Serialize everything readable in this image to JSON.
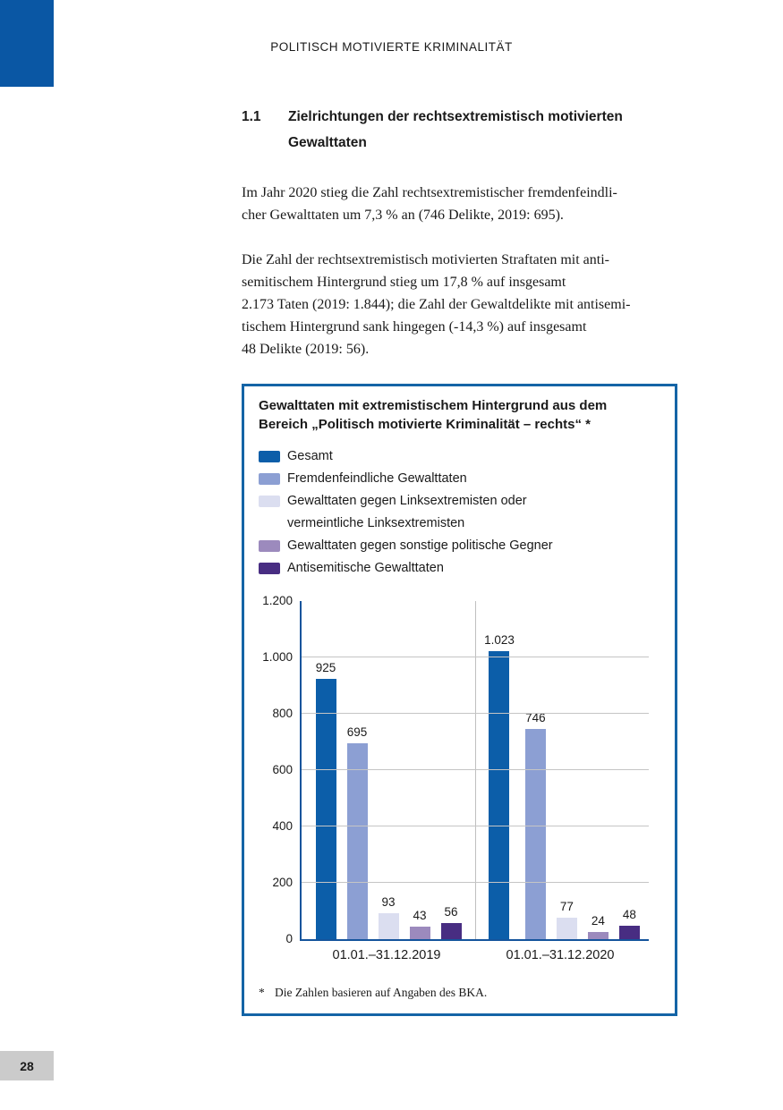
{
  "page": {
    "running_head": "POLITISCH MOTIVIERTE KRIMINALITÄT",
    "page_number": "28"
  },
  "section": {
    "number": "1.1",
    "title_lines": [
      "Zielrichtungen der rechtsextremistisch motivierten",
      "Gewalttaten"
    ]
  },
  "paragraphs": [
    "Im Jahr 2020 stieg die Zahl rechtsextremistischer fremdenfeindli-\ncher Gewalttaten um 7,3 % an (746 Delikte, 2019: 695).",
    "Die Zahl der rechtsextremistisch motivierten Straftaten mit anti-\nsemitischem  Hintergrund  stieg  um  17,8  %  auf  insgesamt\n2.173 Taten (2019: 1.844); die Zahl der Gewaltdelikte mit antisemi-\ntischem  Hintergrund  sank  hingegen  (-14,3  %)  auf  insgesamt\n48 Delikte (2019: 56)."
  ],
  "figure": {
    "title_lines": [
      "Gewalttaten mit extremistischem Hintergrund aus dem",
      "Bereich „Politisch motivierte Kriminalität – rechts“ *"
    ],
    "legend": [
      {
        "label": "Gesamt",
        "color": "#0c5ea9"
      },
      {
        "label": "Fremdenfeindliche Gewalttaten",
        "color": "#8c9fd3"
      },
      {
        "label": "Gewalttaten gegen Linksextremisten oder\nvermeintliche Linksextremisten",
        "color": "#dbdef0"
      },
      {
        "label": "Gewalttaten gegen sonstige politische Gegner",
        "color": "#9c8abd"
      },
      {
        "label": "Antisemitische Gewalttaten",
        "color": "#482d82"
      }
    ],
    "footnote_marker": "*",
    "footnote_text": "Die Zahlen basieren auf Angaben des BKA."
  },
  "chart_data": {
    "type": "bar",
    "categories": [
      "01.01.–31.12.2019",
      "01.01.–31.12.2020"
    ],
    "series": [
      {
        "name": "Gesamt",
        "color": "#0c5ea9",
        "values": [
          925,
          1023
        ],
        "labels": [
          "925",
          "1.023"
        ]
      },
      {
        "name": "Fremdenfeindliche Gewalttaten",
        "color": "#8c9fd3",
        "values": [
          695,
          746
        ],
        "labels": [
          "695",
          "746"
        ]
      },
      {
        "name": "Gewalttaten gegen Linksextremisten oder vermeintliche Linksextremisten",
        "color": "#dbdef0",
        "values": [
          93,
          77
        ],
        "labels": [
          "93",
          "77"
        ]
      },
      {
        "name": "Gewalttaten gegen sonstige politische Gegner",
        "color": "#9c8abd",
        "values": [
          43,
          24
        ],
        "labels": [
          "43",
          "24"
        ]
      },
      {
        "name": "Antisemitische Gewalttaten",
        "color": "#482d82",
        "values": [
          56,
          48
        ],
        "labels": [
          "56",
          "48"
        ]
      }
    ],
    "title": "Gewalttaten mit extremistischem Hintergrund aus dem Bereich „Politisch motivierte Kriminalität – rechts“ *",
    "xlabel": "",
    "ylabel": "",
    "ylim": [
      0,
      1200
    ],
    "yticks": [
      0,
      200,
      400,
      600,
      800,
      1000,
      1200
    ],
    "ytick_labels": [
      "0",
      "200",
      "400",
      "600",
      "800",
      "1.000",
      "1.200"
    ],
    "grid": true,
    "legend_position": "top",
    "group_divider": true,
    "axis_color": "#14549c",
    "gridline_color": "#c5c5c5"
  }
}
